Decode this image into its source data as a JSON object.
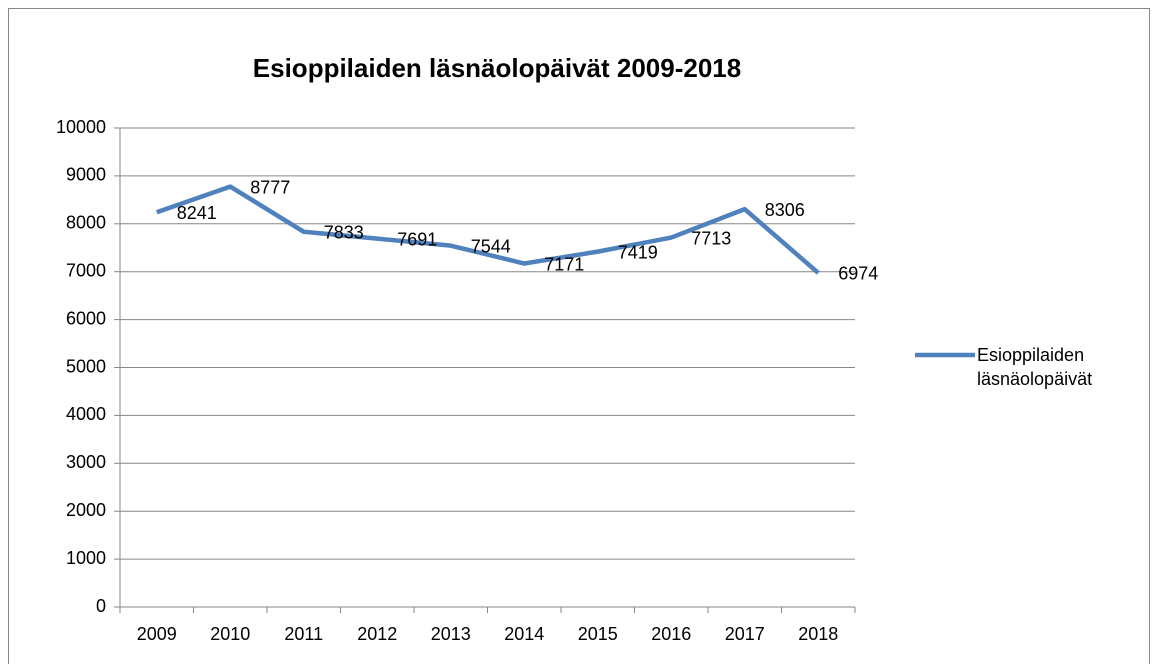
{
  "chart_data": {
    "type": "line",
    "title": "Esioppilaiden läsnäolopäivät 2009-2018",
    "categories": [
      "2009",
      "2010",
      "2011",
      "2012",
      "2013",
      "2014",
      "2015",
      "2016",
      "2017",
      "2018"
    ],
    "series": [
      {
        "name": "Esioppilaiden läsnäolopäivät",
        "color": "#4f81bd",
        "values": [
          8241,
          8777,
          7833,
          7691,
          7544,
          7171,
          7419,
          7713,
          8306,
          6974
        ]
      }
    ],
    "ylim": [
      0,
      10000
    ],
    "yticks": [
      0,
      1000,
      2000,
      3000,
      4000,
      5000,
      6000,
      7000,
      8000,
      9000,
      10000
    ],
    "grid": true,
    "legend": "right"
  }
}
